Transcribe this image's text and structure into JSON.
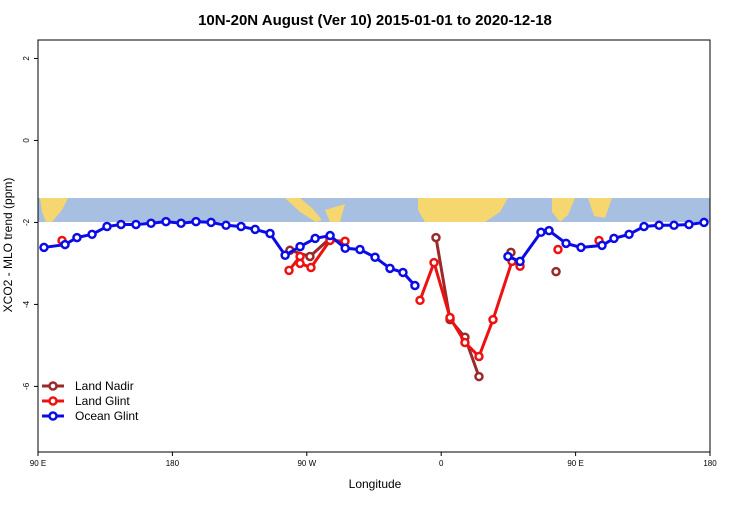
{
  "chart_data": {
    "type": "line",
    "title": "10N-20N August (Ver 10)   2015-01-01 to 2020-12-18",
    "x_label": "Longitude",
    "y_label": "XCO2 - MLO trend (ppm)",
    "xlim": [
      90,
      540
    ],
    "xticks": [
      {
        "value": 90,
        "label": "90 E"
      },
      {
        "value": 180,
        "label": "180"
      },
      {
        "value": 270,
        "label": "90 W"
      },
      {
        "value": 360,
        "label": "0"
      },
      {
        "value": 450,
        "label": "90 E"
      },
      {
        "value": 540,
        "label": "180"
      }
    ],
    "ylim": [
      -7.6,
      2.45
    ],
    "yticks": [
      2,
      0,
      -2,
      -4,
      -6
    ],
    "legend": "bottom-left",
    "series": [
      {
        "name": "Land Nadir",
        "color": "#9a2a2a",
        "x": [
          258.7,
          272.1,
          285.5,
          null,
          356.5,
          365.9,
          375.9,
          385.3,
          null,
          406.7,
          null,
          436.9
        ],
        "values": [
          -2.68,
          -2.83,
          -2.39,
          null,
          -2.37,
          -4.37,
          -4.8,
          -5.76,
          null,
          -2.73,
          null,
          -3.2
        ]
      },
      {
        "name": "Land Glint",
        "color": "#ee1111",
        "x": [
          106.1,
          null,
          258.1,
          265.5,
          265.5,
          272.8,
          285.5,
          295.6,
          null,
          345.8,
          355.2,
          365.9,
          375.9,
          385.3,
          394.7,
          407.4,
          412.8,
          null,
          438.2,
          null,
          465.7
        ],
        "values": [
          -2.44,
          null,
          -3.17,
          -2.83,
          -3.0,
          -3.1,
          -2.44,
          -2.46,
          null,
          -3.9,
          -2.98,
          -4.32,
          -4.93,
          -5.27,
          -4.37,
          -2.95,
          -3.07,
          null,
          -2.66,
          null,
          -2.44
        ]
      },
      {
        "name": "Ocean Glint",
        "color": "#0b0be8",
        "x": [
          94.0,
          108.1,
          116.1,
          126.2,
          136.2,
          145.6,
          155.6,
          165.7,
          175.7,
          185.8,
          195.8,
          205.9,
          215.9,
          226.0,
          235.4,
          245.4,
          255.5,
          265.5,
          275.6,
          285.6,
          295.7,
          305.6,
          315.7,
          325.7,
          334.4,
          342.4,
          null,
          404.7,
          412.8,
          426.8,
          432.2,
          443.6,
          453.6,
          467.7,
          475.7,
          485.8,
          495.8,
          505.9,
          515.9,
          525.9,
          536.0
        ],
        "values": [
          -2.61,
          -2.54,
          -2.37,
          -2.29,
          -2.1,
          -2.05,
          -2.05,
          -2.02,
          -1.98,
          -2.02,
          -1.98,
          -2.0,
          -2.07,
          -2.1,
          -2.17,
          -2.27,
          -2.8,
          -2.59,
          -2.39,
          -2.32,
          -2.63,
          -2.66,
          -2.85,
          -3.12,
          -3.22,
          -3.54,
          null,
          -2.83,
          -2.95,
          -2.24,
          -2.2,
          -2.51,
          -2.61,
          -2.56,
          -2.39,
          -2.29,
          -2.1,
          -2.07,
          -2.07,
          -2.05,
          -2.0
        ]
      }
    ]
  }
}
